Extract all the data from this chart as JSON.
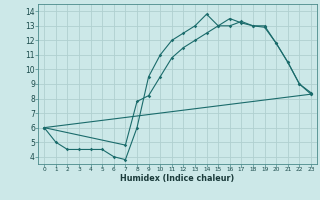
{
  "xlabel": "Humidex (Indice chaleur)",
  "bg_color": "#cce8e8",
  "grid_color": "#b0d0d0",
  "line_color": "#1a6b6b",
  "xlim": [
    -0.5,
    23.5
  ],
  "ylim": [
    3.5,
    14.5
  ],
  "xticks": [
    0,
    1,
    2,
    3,
    4,
    5,
    6,
    7,
    8,
    9,
    10,
    11,
    12,
    13,
    14,
    15,
    16,
    17,
    18,
    19,
    20,
    21,
    22,
    23
  ],
  "yticks": [
    4,
    5,
    6,
    7,
    8,
    9,
    10,
    11,
    12,
    13,
    14
  ],
  "line1_x": [
    0,
    1,
    2,
    3,
    4,
    5,
    6,
    7,
    8,
    9,
    10,
    11,
    12,
    13,
    14,
    15,
    16,
    17,
    18,
    19,
    20,
    21,
    22,
    23
  ],
  "line1_y": [
    6.0,
    5.0,
    4.5,
    4.5,
    4.5,
    4.5,
    4.0,
    3.8,
    6.0,
    9.5,
    11.0,
    12.0,
    12.5,
    13.0,
    13.8,
    13.0,
    13.5,
    13.2,
    13.0,
    13.0,
    11.8,
    10.5,
    9.0,
    8.4
  ],
  "line2_x": [
    0,
    23
  ],
  "line2_y": [
    6.0,
    8.3
  ],
  "line3_x": [
    0,
    7,
    8,
    9,
    10,
    11,
    12,
    13,
    14,
    15,
    16,
    17,
    18,
    19,
    20,
    21,
    22,
    23
  ],
  "line3_y": [
    6.0,
    4.8,
    7.8,
    8.2,
    9.5,
    10.8,
    11.5,
    12.0,
    12.5,
    13.0,
    13.0,
    13.3,
    13.0,
    12.9,
    11.8,
    10.5,
    9.0,
    8.3
  ]
}
